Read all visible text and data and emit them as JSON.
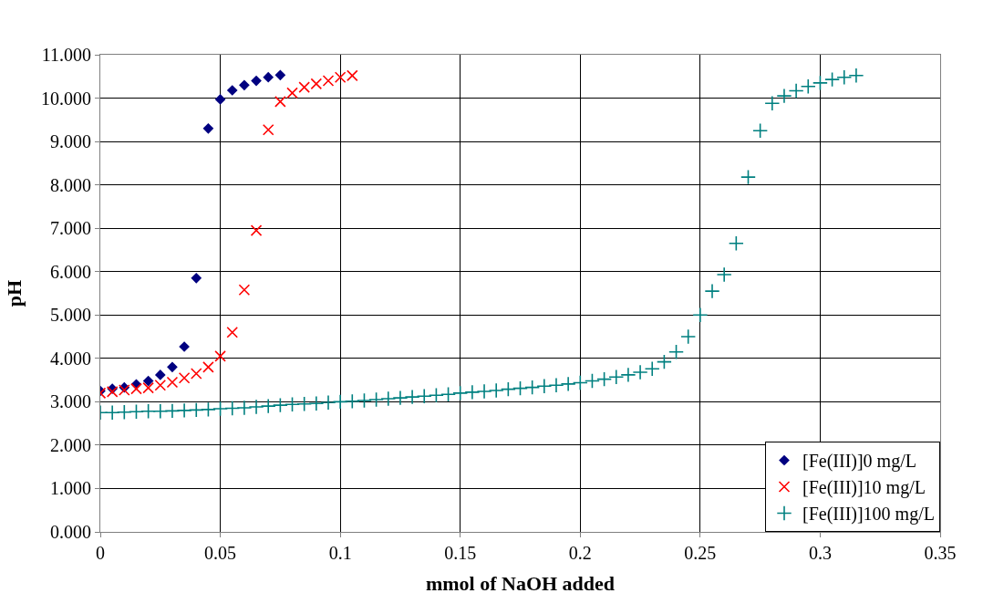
{
  "chart_data": {
    "type": "scatter",
    "xlabel": "mmol of NaOH added",
    "ylabel": "pH",
    "xlim": [
      0,
      0.35
    ],
    "xticks": [
      0,
      0.05,
      0.1,
      0.15,
      0.2,
      0.25,
      0.3,
      0.35
    ],
    "ylim": [
      0,
      11
    ],
    "yticks": [
      {
        "value": 0,
        "label": "0.000"
      },
      {
        "value": 1,
        "label": "1.000"
      },
      {
        "value": 2,
        "label": "2.000"
      },
      {
        "value": 3,
        "label": "3.000"
      },
      {
        "value": 4,
        "label": "4.000"
      },
      {
        "value": 5,
        "label": "5.000"
      },
      {
        "value": 6,
        "label": "6.000"
      },
      {
        "value": 7,
        "label": "7.000"
      },
      {
        "value": 8,
        "label": "8.000"
      },
      {
        "value": 9,
        "label": "9.000"
      },
      {
        "value": 10,
        "label": "10.000"
      },
      {
        "value": 11,
        "label": "11.000"
      }
    ],
    "grid": true,
    "legend": "bottom right",
    "series": [
      {
        "name": "[Fe(III)]0 mg/L",
        "color": "#000080",
        "marker": "diamond",
        "x": [
          0,
          0.005,
          0.01,
          0.015,
          0.02,
          0.025,
          0.03,
          0.035,
          0.04,
          0.045,
          0.05,
          0.055,
          0.06,
          0.065,
          0.07,
          0.075
        ],
        "values": [
          3.25,
          3.3,
          3.33,
          3.4,
          3.48,
          3.62,
          3.8,
          4.27,
          5.85,
          9.3,
          9.97,
          10.18,
          10.3,
          10.4,
          10.48,
          10.53
        ]
      },
      {
        "name": "[Fe(III)]10 mg/L",
        "color": "#ff0000",
        "marker": "cross",
        "x": [
          0,
          0.005,
          0.01,
          0.015,
          0.02,
          0.025,
          0.03,
          0.035,
          0.04,
          0.045,
          0.05,
          0.055,
          0.06,
          0.065,
          0.07,
          0.075,
          0.08,
          0.085,
          0.09,
          0.095,
          0.1,
          0.105
        ],
        "values": [
          3.2,
          3.23,
          3.27,
          3.3,
          3.32,
          3.38,
          3.45,
          3.55,
          3.65,
          3.8,
          4.05,
          4.6,
          5.58,
          6.95,
          9.27,
          9.92,
          10.12,
          10.25,
          10.33,
          10.4,
          10.48,
          10.52
        ]
      },
      {
        "name": "[Fe(III)]100 mg/L",
        "color": "#008080",
        "marker": "plus",
        "x": [
          0,
          0.005,
          0.01,
          0.015,
          0.02,
          0.025,
          0.03,
          0.035,
          0.04,
          0.045,
          0.05,
          0.055,
          0.06,
          0.065,
          0.07,
          0.075,
          0.08,
          0.085,
          0.09,
          0.095,
          0.1,
          0.105,
          0.11,
          0.115,
          0.12,
          0.125,
          0.13,
          0.135,
          0.14,
          0.145,
          0.15,
          0.155,
          0.16,
          0.165,
          0.17,
          0.175,
          0.18,
          0.185,
          0.19,
          0.195,
          0.2,
          0.205,
          0.21,
          0.215,
          0.22,
          0.225,
          0.23,
          0.235,
          0.24,
          0.245,
          0.25,
          0.255,
          0.26,
          0.265,
          0.27,
          0.275,
          0.28,
          0.285,
          0.29,
          0.295,
          0.3,
          0.305,
          0.31,
          0.315
        ],
        "values": [
          2.75,
          2.75,
          2.76,
          2.77,
          2.78,
          2.78,
          2.79,
          2.8,
          2.81,
          2.82,
          2.84,
          2.85,
          2.86,
          2.88,
          2.9,
          2.92,
          2.94,
          2.95,
          2.96,
          2.98,
          3.0,
          3.01,
          3.03,
          3.05,
          3.07,
          3.09,
          3.11,
          3.13,
          3.15,
          3.17,
          3.2,
          3.22,
          3.24,
          3.26,
          3.29,
          3.31,
          3.33,
          3.36,
          3.38,
          3.41,
          3.44,
          3.48,
          3.52,
          3.57,
          3.62,
          3.68,
          3.76,
          3.92,
          4.15,
          4.5,
          5.0,
          5.55,
          5.93,
          6.65,
          8.18,
          9.25,
          9.88,
          10.05,
          10.17,
          10.27,
          10.35,
          10.43,
          10.48,
          10.52
        ]
      }
    ]
  }
}
